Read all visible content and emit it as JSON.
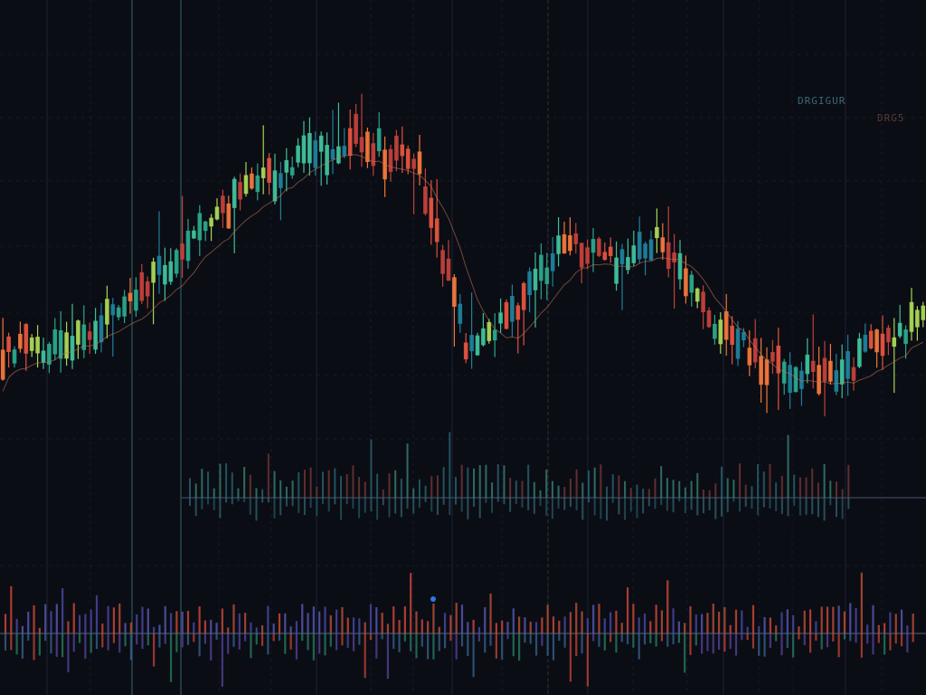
{
  "chart_data": [
    {
      "type": "candlestick",
      "title": "",
      "xlabel": "",
      "ylabel": "",
      "grid": true,
      "ylim": [
        0,
        100
      ],
      "n_candles": 160,
      "anchors": [
        [
          0,
          18
        ],
        [
          12,
          22
        ],
        [
          22,
          30
        ],
        [
          30,
          44
        ],
        [
          40,
          58
        ],
        [
          52,
          68
        ],
        [
          60,
          74
        ],
        [
          72,
          66
        ],
        [
          80,
          20
        ],
        [
          88,
          28
        ],
        [
          97,
          46
        ],
        [
          106,
          42
        ],
        [
          114,
          48
        ],
        [
          124,
          24
        ],
        [
          134,
          14
        ],
        [
          144,
          12
        ],
        [
          152,
          22
        ],
        [
          159,
          28
        ]
      ],
      "colors": {
        "up": [
          "#2aa58a",
          "#3fbf9a",
          "#a8d455",
          "#1f7f9a"
        ],
        "down": [
          "#e2533f",
          "#f0763a",
          "#c0403a"
        ]
      }
    },
    {
      "type": "bar",
      "title": "",
      "n_bars": 110,
      "baseline": 0,
      "colors": {
        "pos": [
          "#2a6a78",
          "#3a8a7a",
          "#7a3a3a"
        ],
        "neg": [
          "#2a6a78",
          "#3a7a8a"
        ]
      }
    },
    {
      "type": "bar",
      "title": "",
      "n_bars": 160,
      "baseline": 0,
      "colors": {
        "pos": [
          "#d24a3a",
          "#4a4aa8",
          "#5a5ab8",
          "#c0503a"
        ],
        "neg": [
          "#d24a3a",
          "#3a6a9a",
          "#2a8a6a",
          "#5a4aa8"
        ]
      }
    }
  ],
  "theme": {
    "background": "#0b0d14",
    "grid": "#1a2233",
    "accent_line": "#3a4a5a"
  },
  "watermark": {
    "text": "DRGIGUR",
    "sub": "DRG5"
  }
}
